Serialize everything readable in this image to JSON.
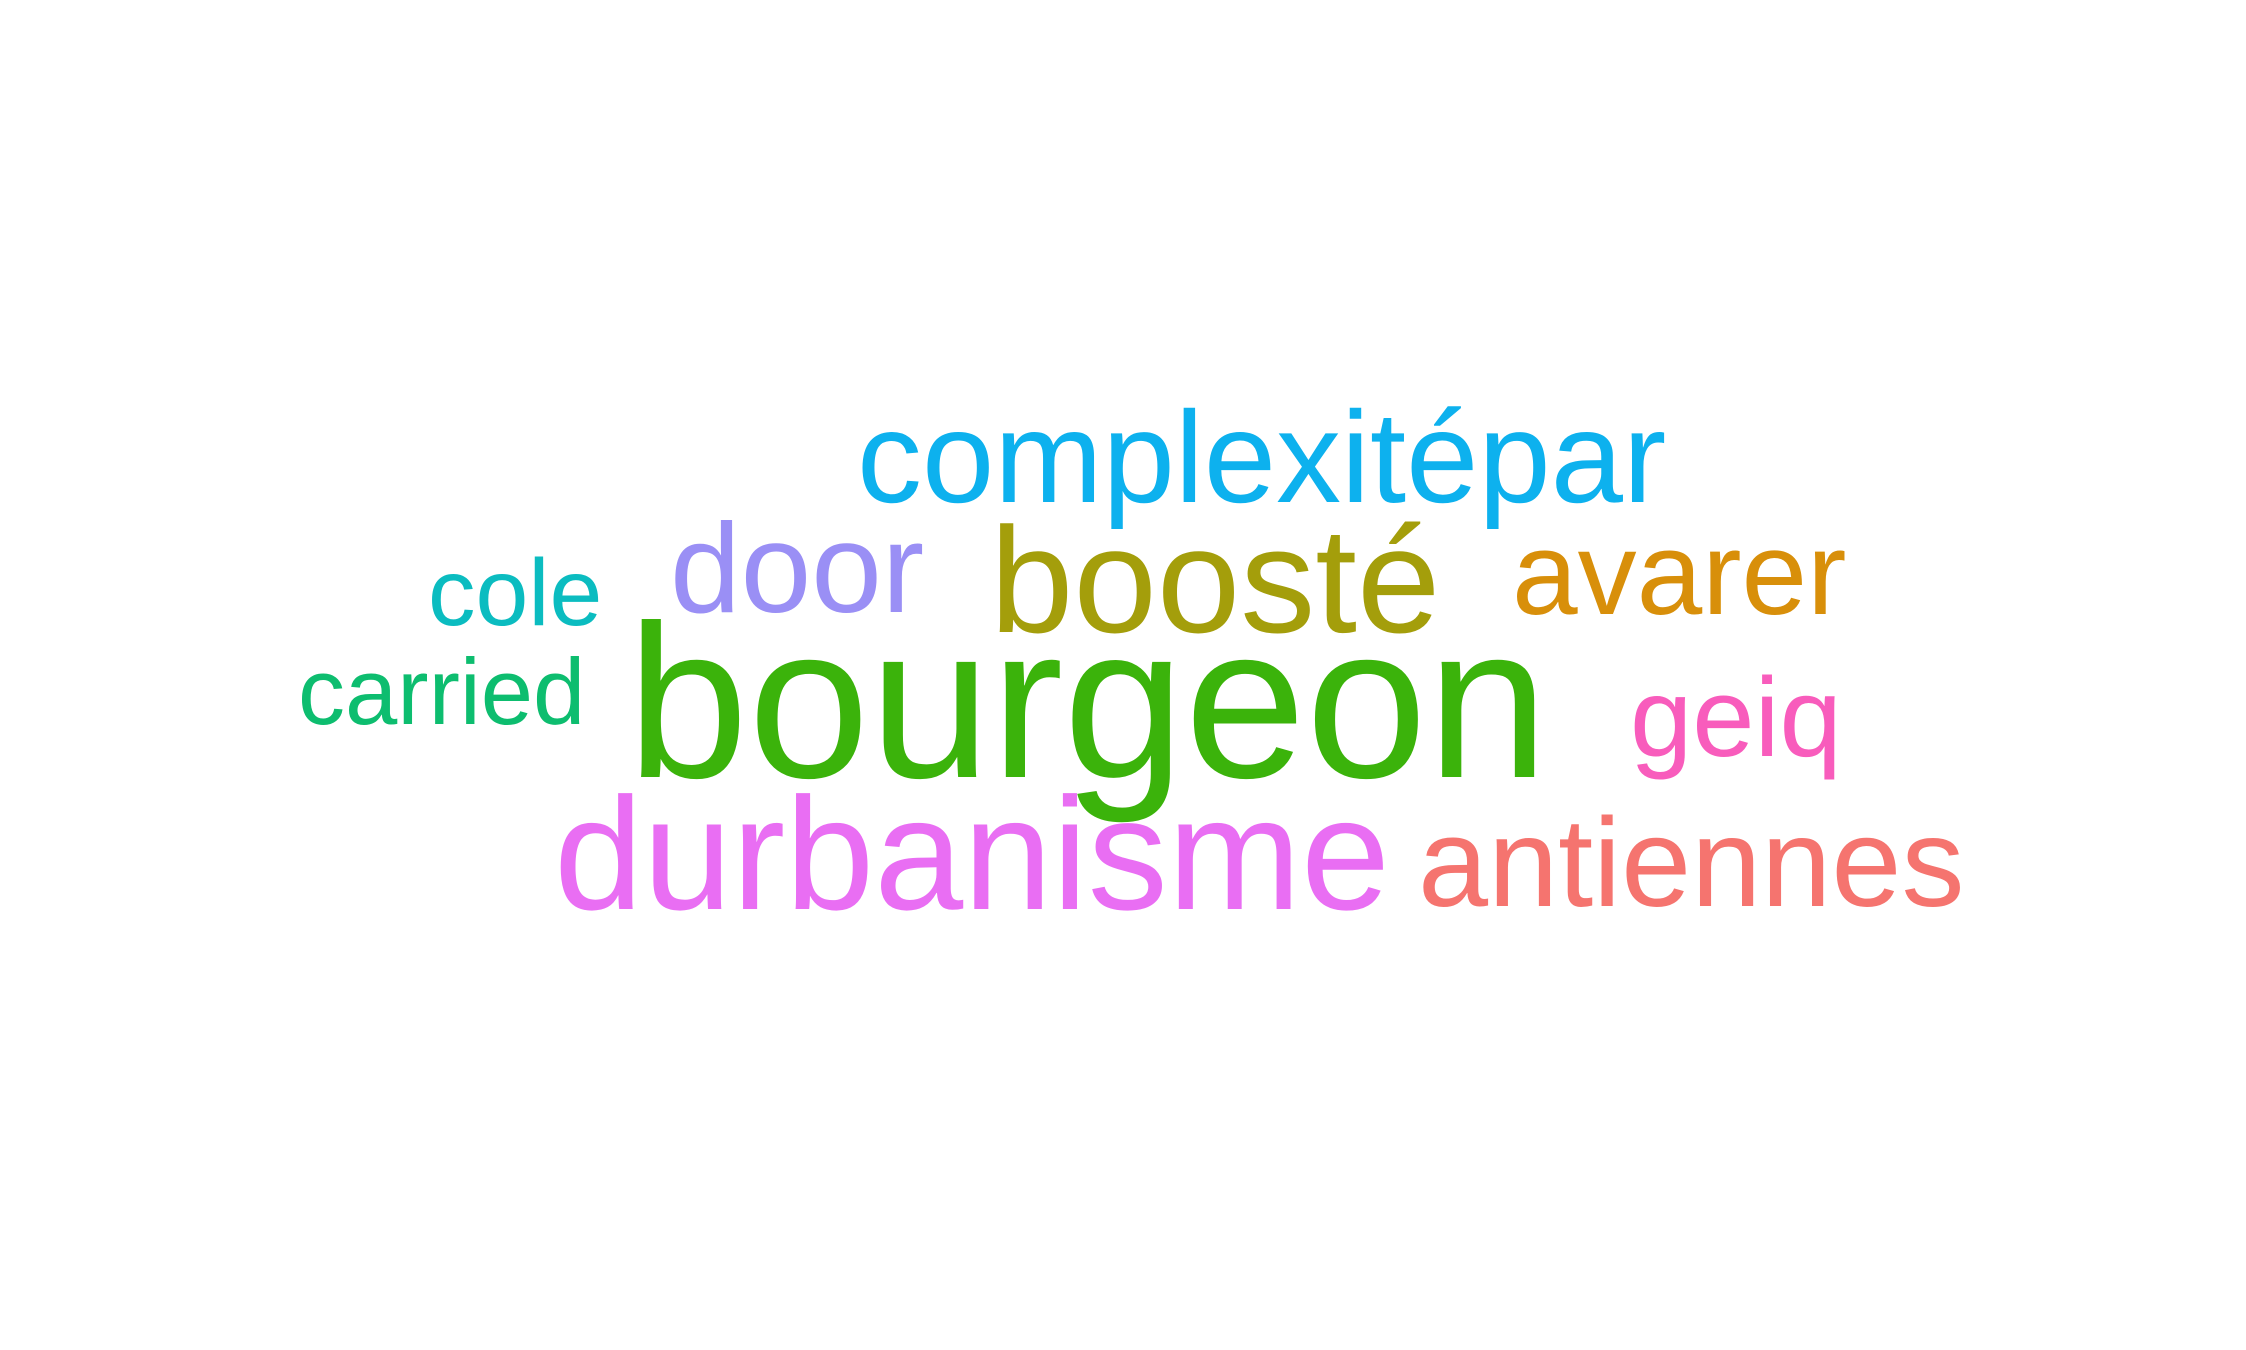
{
  "words": [
    {
      "id": "w-complexitepar",
      "text": "complexitépar",
      "color": "#0db1ee"
    },
    {
      "id": "w-door",
      "text": "door",
      "color": "#9a8ff5"
    },
    {
      "id": "w-booste",
      "text": "boosté",
      "color": "#a49e0b"
    },
    {
      "id": "w-avarer",
      "text": "avarer",
      "color": "#d88f0a"
    },
    {
      "id": "w-cole",
      "text": "cole",
      "color": "#0bbcc0"
    },
    {
      "id": "w-bourgeon",
      "text": "bourgeon",
      "color": "#3bb30b"
    },
    {
      "id": "w-carried",
      "text": "carried",
      "color": "#0dbd6f"
    },
    {
      "id": "w-geiq",
      "text": "geiq",
      "color": "#f85cbc"
    },
    {
      "id": "w-durbanisme",
      "text": "durbanisme",
      "color": "#e96ef3"
    },
    {
      "id": "w-antiennes",
      "text": "antiennes",
      "color": "#f5746f"
    }
  ]
}
